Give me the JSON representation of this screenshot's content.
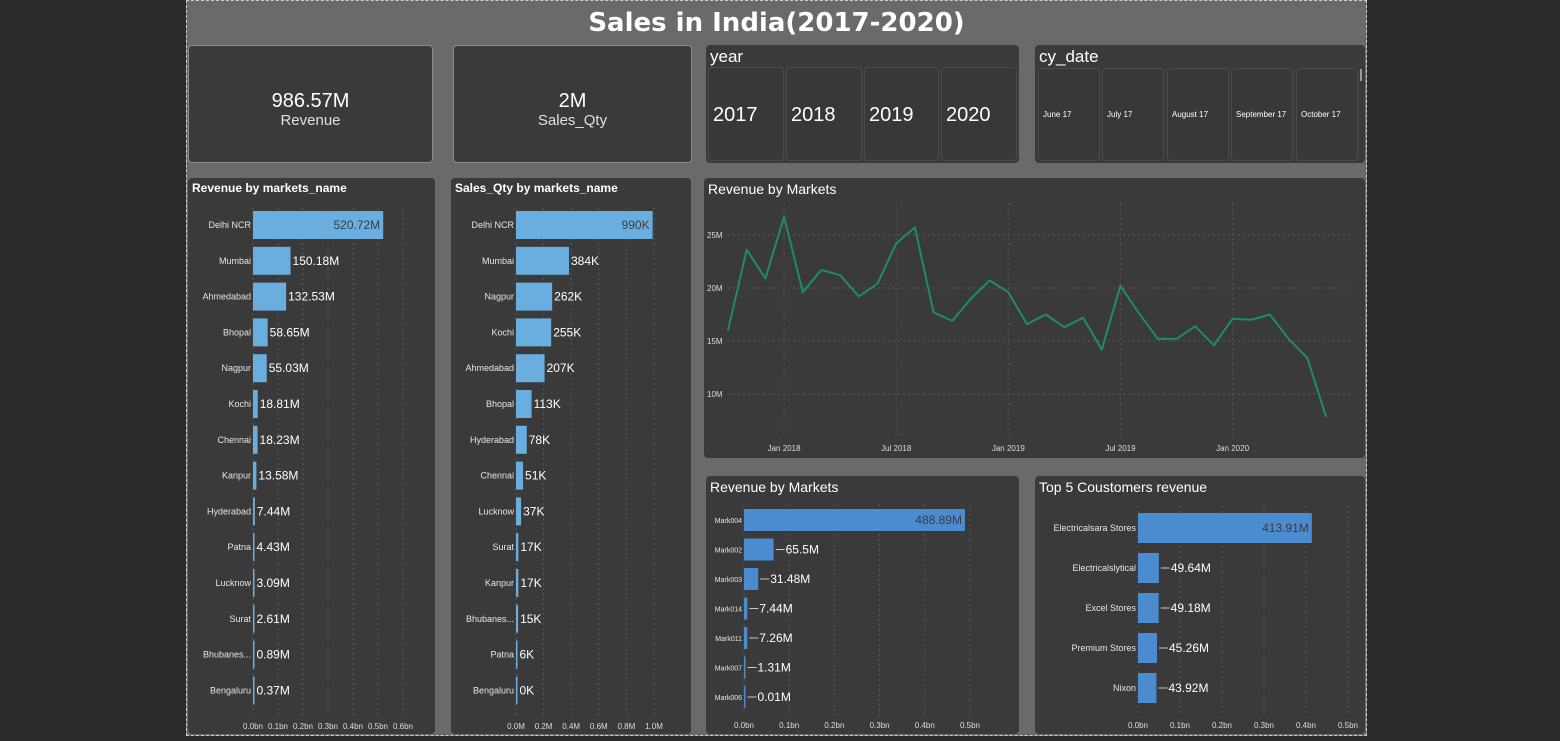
{
  "header": {
    "title": "Sales in India(2017-2020)"
  },
  "kpis": {
    "revenue": {
      "value": "986.57M",
      "label": "Revenue"
    },
    "sales_qty": {
      "value": "2M",
      "label": "Sales_Qty"
    }
  },
  "year_slicer": {
    "title": "year",
    "options": [
      "2017",
      "2018",
      "2019",
      "2020"
    ]
  },
  "date_slicer": {
    "title": "cy_date",
    "options": [
      "June 17",
      "July 17",
      "August 17",
      "September 17",
      "October 17"
    ]
  },
  "chart_data": [
    {
      "id": "rev_market",
      "type": "bar",
      "orientation": "horizontal",
      "title": "Revenue by markets_name",
      "categories": [
        "Delhi NCR",
        "Mumbai",
        "Ahmedabad",
        "Bhopal",
        "Nagpur",
        "Kochi",
        "Chennai",
        "Kanpur",
        "Hyderabad",
        "Patna",
        "Lucknow",
        "Surat",
        "Bhubanes...",
        "Bengaluru"
      ],
      "values": [
        520.72,
        150.18,
        132.53,
        58.65,
        55.03,
        18.81,
        18.23,
        13.58,
        7.44,
        4.43,
        3.09,
        2.61,
        0.89,
        0.37
      ],
      "data_labels": [
        "520.72M",
        "150.18M",
        "132.53M",
        "58.65M",
        "55.03M",
        "18.81M",
        "18.23M",
        "13.58M",
        "7.44M",
        "4.43M",
        "3.09M",
        "2.61M",
        "0.89M",
        "0.37M"
      ],
      "xlim": [
        0,
        600
      ],
      "xticks": [
        0,
        100,
        200,
        300,
        400,
        500,
        600
      ],
      "xtick_labels": [
        "0.0bn",
        "0.1bn",
        "0.2bn",
        "0.3bn",
        "0.4bn",
        "0.5bn",
        "0.6bn"
      ],
      "color": "#6aaee0",
      "grid": true
    },
    {
      "id": "qty_market",
      "type": "bar",
      "orientation": "horizontal",
      "title": "Sales_Qty by markets_name",
      "categories": [
        "Delhi NCR",
        "Mumbai",
        "Nagpur",
        "Kochi",
        "Ahmedabad",
        "Bhopal",
        "Hyderabad",
        "Chennai",
        "Lucknow",
        "Surat",
        "Kanpur",
        "Bhubanes...",
        "Patna",
        "Bengaluru"
      ],
      "values": [
        990,
        384,
        262,
        255,
        207,
        113,
        78,
        51,
        37,
        17,
        17,
        15,
        6,
        0
      ],
      "data_labels": [
        "990K",
        "384K",
        "262K",
        "255K",
        "207K",
        "113K",
        "78K",
        "51K",
        "37K",
        "17K",
        "17K",
        "15K",
        "6K",
        "0K"
      ],
      "xlim": [
        0,
        1000
      ],
      "xticks": [
        0,
        200,
        400,
        600,
        800,
        1000
      ],
      "xtick_labels": [
        "0.0M",
        "0.2M",
        "0.4M",
        "0.6M",
        "0.8M",
        "1.0M"
      ],
      "color": "#6aaee0",
      "grid": true
    },
    {
      "id": "rev_line",
      "type": "line",
      "title": "Revenue by Markets",
      "x": [
        "2017-10",
        "2017-11",
        "2017-12",
        "2018-01",
        "2018-02",
        "2018-03",
        "2018-04",
        "2018-05",
        "2018-06",
        "2018-07",
        "2018-08",
        "2018-09",
        "2018-10",
        "2018-11",
        "2018-12",
        "2019-01",
        "2019-02",
        "2019-03",
        "2019-04",
        "2019-05",
        "2019-06",
        "2019-07",
        "2019-08",
        "2019-09",
        "2019-10",
        "2019-11",
        "2019-12",
        "2020-01",
        "2020-02",
        "2020-03",
        "2020-04",
        "2020-05",
        "2020-06"
      ],
      "values": [
        16.0,
        23.6,
        20.9,
        26.7,
        19.6,
        21.7,
        21.2,
        19.2,
        20.4,
        24.2,
        25.7,
        17.7,
        16.9,
        19.0,
        20.7,
        19.6,
        16.6,
        17.5,
        16.3,
        17.2,
        14.2,
        20.2,
        17.6,
        15.2,
        15.2,
        16.4,
        14.6,
        17.1,
        17.0,
        17.5,
        15.2,
        13.4,
        7.9
      ],
      "ylim": [
        7,
        28
      ],
      "yticks": [
        10,
        15,
        20,
        25
      ],
      "ytick_labels": [
        "10M",
        "15M",
        "20M",
        "25M"
      ],
      "xtick_labels": [
        "Jan 2018",
        "Jul 2018",
        "Jan 2019",
        "Jul 2019",
        "Jan 2020"
      ],
      "xtick_positions": [
        "2018-01",
        "2018-07",
        "2019-01",
        "2019-07",
        "2020-01"
      ],
      "color": "#1f8a6e",
      "grid": true
    },
    {
      "id": "rev_code",
      "type": "bar",
      "orientation": "horizontal",
      "title": "Revenue by Markets",
      "categories": [
        "Mark004",
        "Mark002",
        "Mark003",
        "Mark014",
        "Mark011",
        "Mark007",
        "Mark006"
      ],
      "values": [
        488.89,
        65.5,
        31.48,
        7.44,
        7.26,
        1.31,
        0.01
      ],
      "data_labels": [
        "488.89M",
        "65.5M",
        "31.48M",
        "7.44M",
        "7.26M",
        "1.31M",
        "0.01M"
      ],
      "xlim": [
        0,
        500
      ],
      "xticks": [
        0,
        100,
        200,
        300,
        400,
        500
      ],
      "xtick_labels": [
        "0.0bn",
        "0.1bn",
        "0.2bn",
        "0.3bn",
        "0.4bn",
        "0.5bn"
      ],
      "color": "#4b8bd0",
      "grid": true
    },
    {
      "id": "top_cust",
      "type": "bar",
      "orientation": "horizontal",
      "title": "Top 5 Coustomers revenue",
      "categories": [
        "Electricalsara Stores",
        "Electricalslytical",
        "Excel Stores",
        "Premium Stores",
        "Nixon"
      ],
      "values": [
        413.91,
        49.64,
        49.18,
        45.26,
        43.92
      ],
      "data_labels": [
        "413.91M",
        "49.64M",
        "49.18M",
        "45.26M",
        "43.92M"
      ],
      "xlim": [
        0,
        500
      ],
      "xticks": [
        0,
        100,
        200,
        300,
        400,
        500
      ],
      "xtick_labels": [
        "0.0bn",
        "0.1bn",
        "0.2bn",
        "0.3bn",
        "0.4bn",
        "0.5bn"
      ],
      "color": "#4b8bd0",
      "grid": true
    }
  ]
}
